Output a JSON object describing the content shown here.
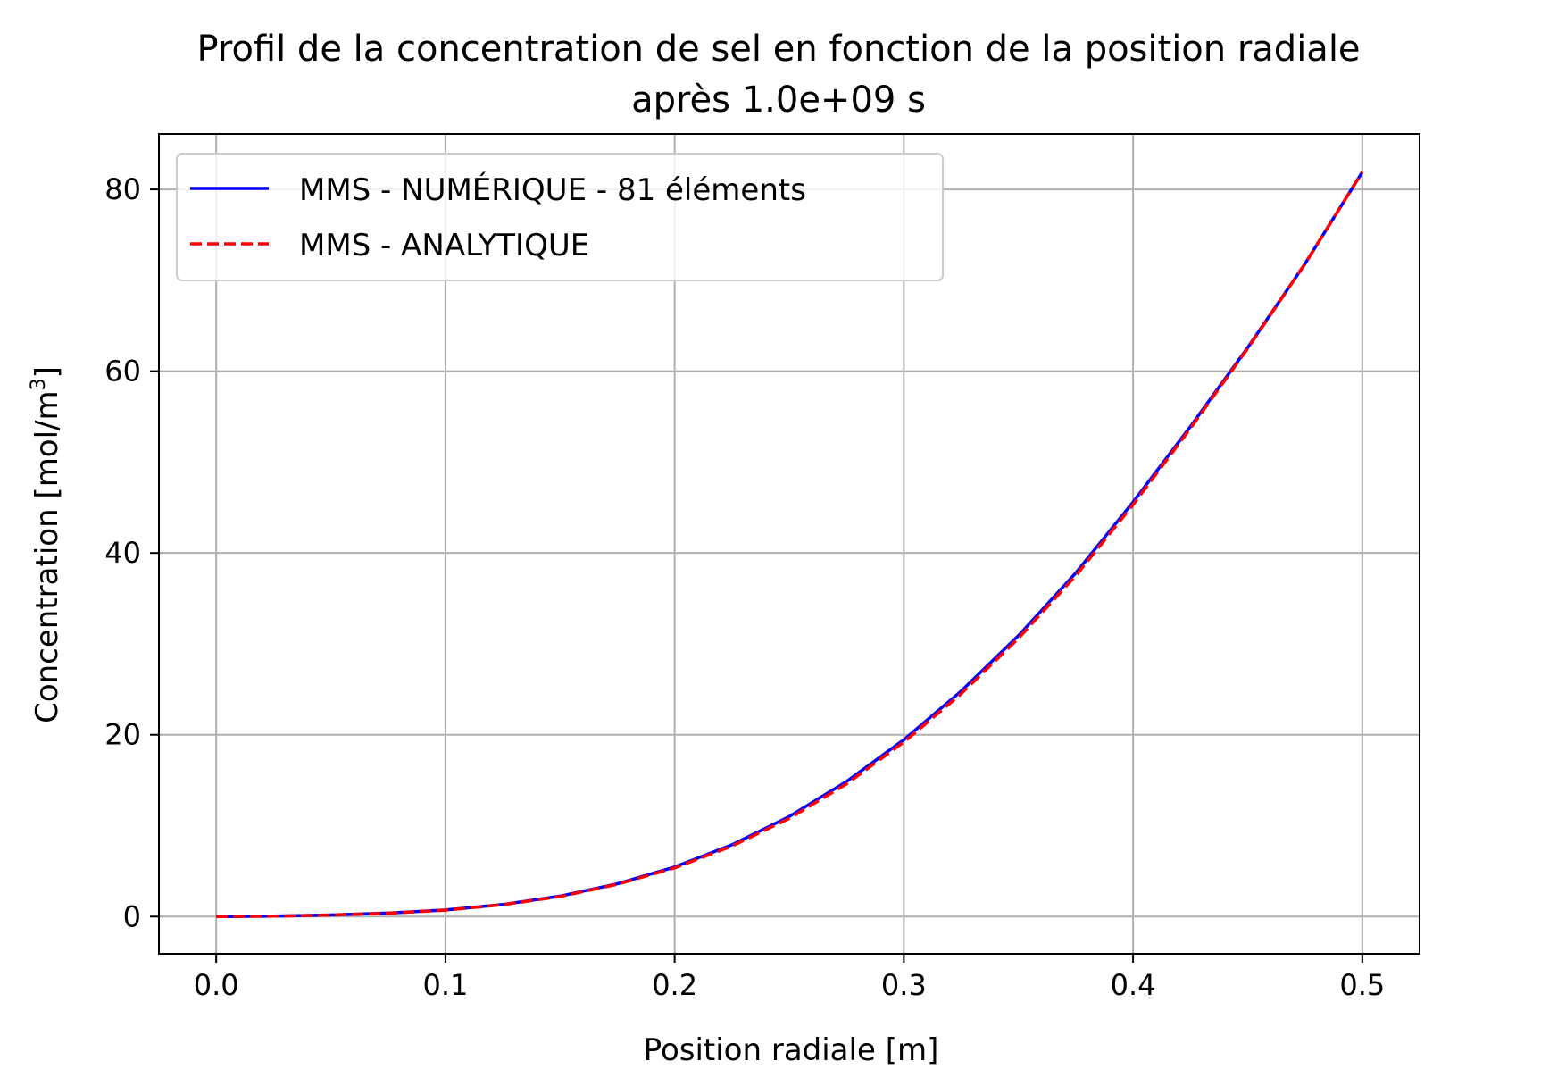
{
  "chart_data": {
    "type": "line",
    "title_line1": "Profil de la concentration de sel en fonction de la position radiale",
    "title_line2": "après 1.0e+09 s",
    "xlabel": "Position radiale [m]",
    "ylabel_main": "Concentration [mol/m",
    "ylabel_sup": "3",
    "ylabel_close": "]",
    "xlim": [
      -0.025,
      0.525
    ],
    "ylim": [
      -4.1,
      86.1
    ],
    "xticks": [
      0.0,
      0.1,
      0.2,
      0.3,
      0.4,
      0.5
    ],
    "xtick_labels": [
      "0.0",
      "0.1",
      "0.2",
      "0.3",
      "0.4",
      "0.5"
    ],
    "yticks": [
      0,
      20,
      40,
      60,
      80
    ],
    "ytick_labels": [
      "0",
      "20",
      "40",
      "60",
      "80"
    ],
    "grid": true,
    "legend_position": "upper-left",
    "x": [
      0.0,
      0.025,
      0.05,
      0.075,
      0.1,
      0.125,
      0.15,
      0.175,
      0.2,
      0.225,
      0.25,
      0.275,
      0.3,
      0.325,
      0.35,
      0.375,
      0.4,
      0.425,
      0.45,
      0.475,
      0.5
    ],
    "series": [
      {
        "name": "MMS - NUMÉRIQUE - 81 éléments",
        "color": "#0000ff",
        "style": "solid",
        "values": [
          0.0,
          0.05,
          0.17,
          0.38,
          0.72,
          1.32,
          2.25,
          3.6,
          5.45,
          7.9,
          11.0,
          14.85,
          19.45,
          24.8,
          30.9,
          37.8,
          45.6,
          53.9,
          62.6,
          71.8,
          81.9
        ]
      },
      {
        "name": "MMS - ANALYTIQUE",
        "color": "#ff0000",
        "style": "dashed",
        "values": [
          0.0,
          0.05,
          0.16,
          0.37,
          0.7,
          1.3,
          2.2,
          3.55,
          5.35,
          7.75,
          10.8,
          14.6,
          19.2,
          24.5,
          30.6,
          37.5,
          45.3,
          53.7,
          62.5,
          71.8,
          81.9
        ]
      }
    ]
  }
}
